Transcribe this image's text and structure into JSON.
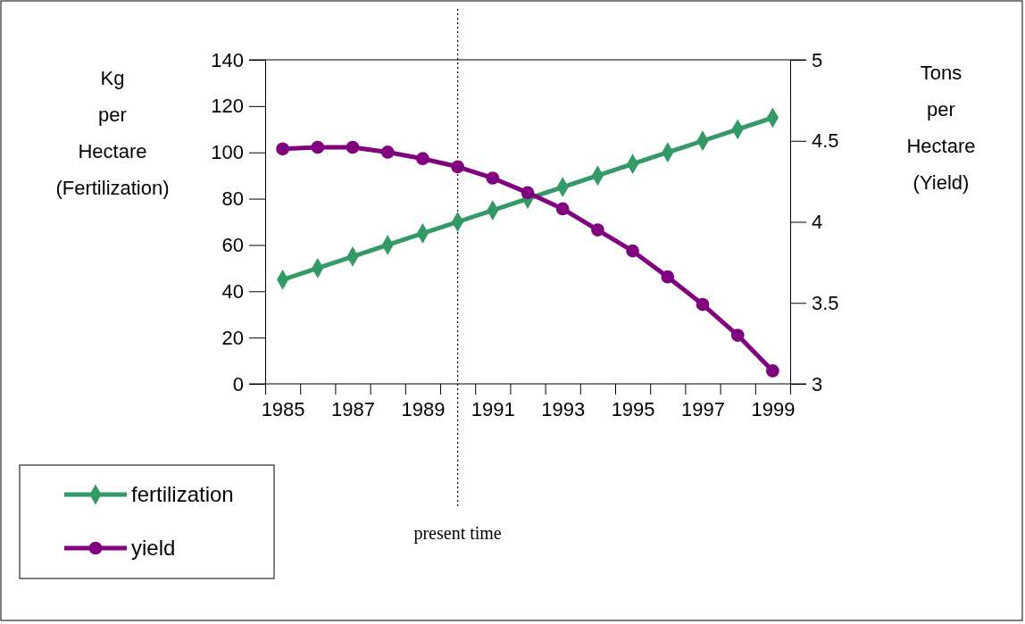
{
  "chart_data": {
    "type": "line",
    "x": [
      1985,
      1986,
      1987,
      1988,
      1989,
      1990,
      1991,
      1992,
      1993,
      1994,
      1995,
      1996,
      1997,
      1998,
      1999
    ],
    "xlim": [
      1984.5,
      1999.5
    ],
    "xticks": [
      {
        "value": 1984.5,
        "label": null
      },
      {
        "value": 1985.5,
        "label": null
      },
      {
        "value": 1986.5,
        "label": null
      },
      {
        "value": 1987.5,
        "label": null
      },
      {
        "value": 1988.5,
        "label": null
      },
      {
        "value": 1989.5,
        "label": null
      },
      {
        "value": 1990.5,
        "label": null
      },
      {
        "value": 1991.5,
        "label": null
      },
      {
        "value": 1992.5,
        "label": null
      },
      {
        "value": 1993.5,
        "label": null
      },
      {
        "value": 1994.5,
        "label": null
      },
      {
        "value": 1995.5,
        "label": null
      },
      {
        "value": 1996.5,
        "label": null
      },
      {
        "value": 1997.5,
        "label": null
      },
      {
        "value": 1998.5,
        "label": null
      },
      {
        "value": 1999.5,
        "label": null
      },
      1985,
      1987,
      1989,
      1991,
      1993,
      1995,
      1997,
      1999
    ],
    "ylabel": "Kg per Hectare (Fertilization)",
    "y2label": "Tons per Hectare (Yield)",
    "ylim": [
      0,
      140
    ],
    "yticks": [
      0,
      20,
      40,
      60,
      80,
      100,
      120,
      140
    ],
    "y2lim": [
      3,
      5
    ],
    "y2ticks": [
      3,
      3.5,
      4,
      4.5,
      5
    ],
    "series": [
      {
        "name": "fertilization",
        "color": "#339966",
        "marker": "diamond",
        "values": [
          45,
          50,
          55,
          60,
          65,
          70,
          75,
          80,
          85,
          90,
          95,
          100,
          105,
          110,
          115
        ]
      },
      {
        "name": "yield",
        "color": "#800080",
        "marker": "circle",
        "axis": "y2",
        "values": [
          4.45,
          4.46,
          4.46,
          4.43,
          4.39,
          4.34,
          4.27,
          4.18,
          4.08,
          3.95,
          3.82,
          3.66,
          3.49,
          3.3,
          3.08
        ]
      }
    ],
    "ref_lines": [
      {
        "axis": "x",
        "value": 1990,
        "label": "present time",
        "line_style": "dotted",
        "color": "#000000"
      }
    ],
    "legend": "bottom left",
    "grid": false,
    "line_style": "solid"
  }
}
